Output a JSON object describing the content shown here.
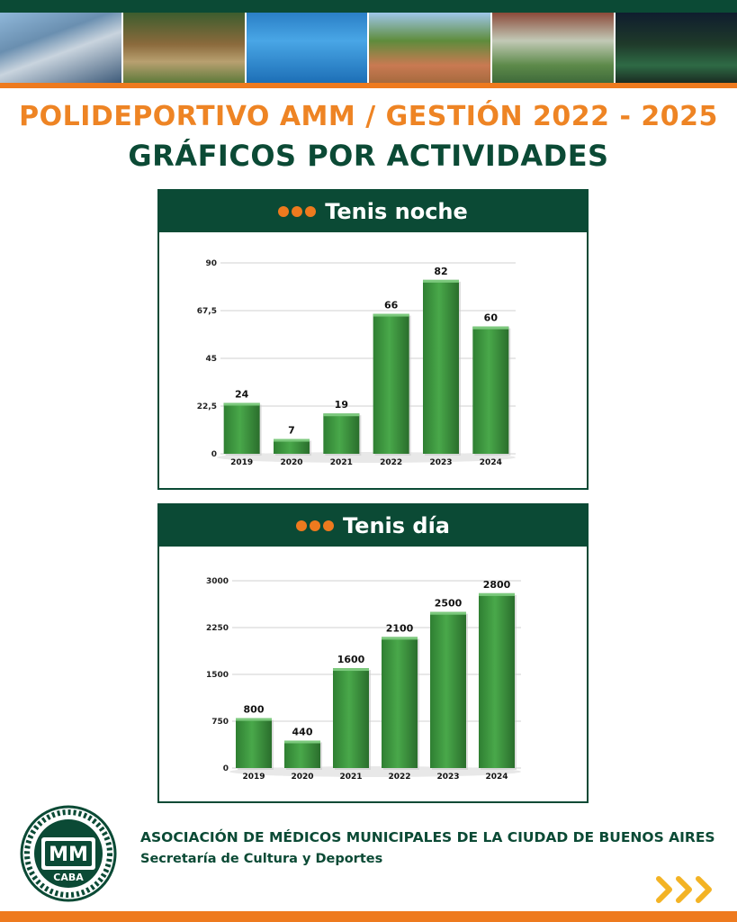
{
  "header": {
    "title": "POLIDEPORTIVO AMM / GESTIÓN 2022 - 2025",
    "subtitle": "GRÁFICOS POR ACTIVIDADES"
  },
  "colors": {
    "brand_green": "#0b4a35",
    "accent_orange": "#ee7a1e",
    "bar_green": "#49a84a"
  },
  "chart_data": [
    {
      "type": "bar",
      "title": "Tenis noche",
      "categories": [
        "2019",
        "2020",
        "2021",
        "2022",
        "2023",
        "2024"
      ],
      "values": [
        24,
        7,
        19,
        66,
        82,
        60
      ],
      "data_labels": [
        "24",
        "7",
        "19",
        "66",
        "82",
        "60"
      ],
      "yticks": [
        0,
        22.5,
        45,
        67.5,
        90
      ],
      "ytick_labels": [
        "0",
        "22,5",
        "45",
        "67,5",
        "90"
      ],
      "ylim": [
        0,
        90
      ],
      "grid": true,
      "legend": "none"
    },
    {
      "type": "bar",
      "title": "Tenis día",
      "categories": [
        "2019",
        "2020",
        "2021",
        "2022",
        "2023",
        "2024"
      ],
      "values": [
        800,
        440,
        1600,
        2100,
        2500,
        2800
      ],
      "data_labels": [
        "800",
        "440",
        "1600",
        "2100",
        "2500",
        "2800"
      ],
      "yticks": [
        0,
        750,
        1500,
        2250,
        3000
      ],
      "ytick_labels": [
        "0",
        "750",
        "1500",
        "2250",
        "3000"
      ],
      "ylim": [
        0,
        3000
      ],
      "grid": true,
      "legend": "none"
    }
  ],
  "footer": {
    "organization": "ASOCIACIÓN DE MÉDICOS MUNICIPALES DE LA CIUDAD DE BUENOS AIRES",
    "department": "Secretaría de Cultura y Deportes",
    "logo": {
      "initials": "MM",
      "city": "CABA",
      "icon": "amm-logo-icon"
    },
    "next_icon": "chevron-right-triple-icon"
  }
}
